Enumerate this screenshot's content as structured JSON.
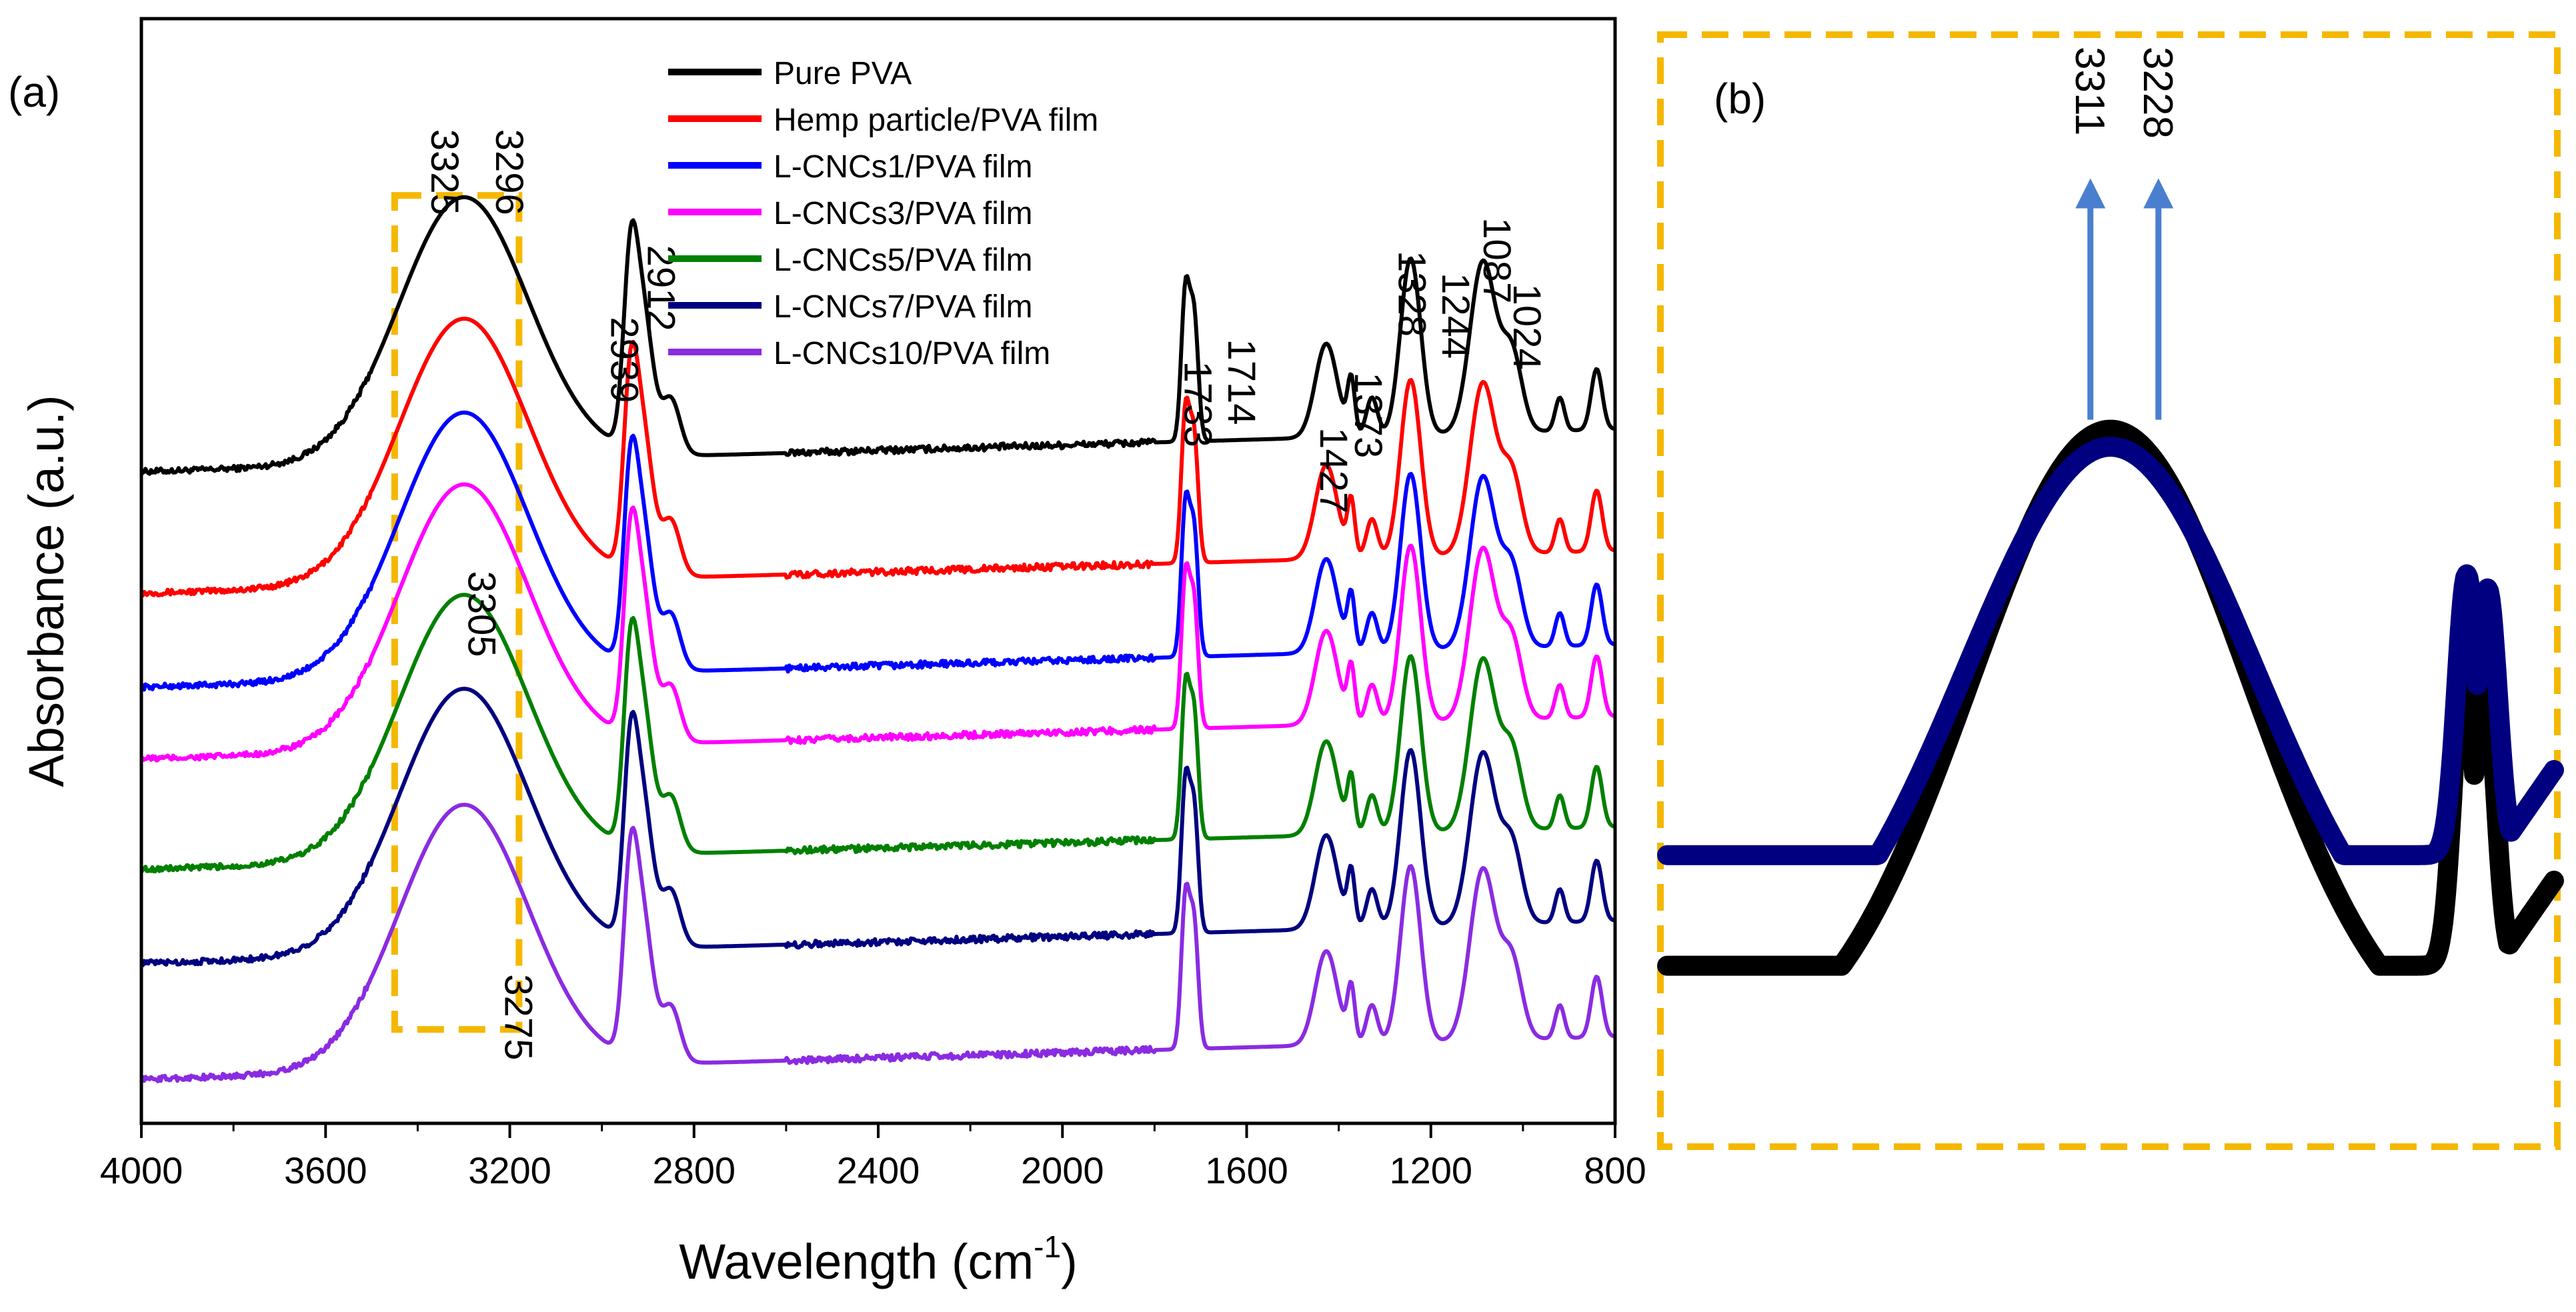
{
  "chart_data": [
    {
      "panel_label": "(a)",
      "type": "line",
      "title": "",
      "xlabel": "Wavelength (cm",
      "xlabel_sup": "-1",
      "xlabel_end": ")",
      "ylabel": "Absorbance (a.u.)",
      "xlim": [
        4000,
        800
      ],
      "ylim": [
        0,
        10
      ],
      "x_ticks": [
        "4000",
        "3600",
        "3200",
        "2800",
        "2400",
        "2000",
        "1600",
        "1200",
        "800"
      ],
      "x_tick_values": [
        4000,
        3600,
        3200,
        2800,
        2400,
        2000,
        1600,
        1200,
        800
      ],
      "legend": {
        "position": "top-center"
      },
      "series": [
        {
          "name": "Pure PVA",
          "color": "#000000",
          "offset": 5.9
        },
        {
          "name": "Hemp particle/PVA film",
          "color": "#ff0000",
          "offset": 4.8
        },
        {
          "name": "L-CNCs1/PVA film",
          "color": "#0000ff",
          "offset": 3.95
        },
        {
          "name": "L-CNCs3/PVA film",
          "color": "#ff00ff",
          "offset": 3.3
        },
        {
          "name": "L-CNCs5/PVA film",
          "color": "#008000",
          "offset": 2.3
        },
        {
          "name": "L-CNCs7/PVA film",
          "color": "#000080",
          "offset": 1.45
        },
        {
          "name": "L-CNCs10/PVA film",
          "color": "#8a2be2",
          "offset": 0.4
        }
      ],
      "peaks": [
        {
          "x": 3300,
          "peak_height": 2.4,
          "width": 140
        },
        {
          "x": 2939,
          "peak_height": 1.35,
          "width": 15
        },
        {
          "x": 2912,
          "peak_height": 1.3,
          "width": 22
        },
        {
          "x": 2850,
          "peak_height": 0.5,
          "width": 20
        },
        {
          "x": 1733,
          "peak_height": 1.35,
          "width": 9
        },
        {
          "x": 1714,
          "peak_height": 1.1,
          "width": 9
        },
        {
          "x": 1427,
          "peak_height": 0.85,
          "width": 24
        },
        {
          "x": 1373,
          "peak_height": 0.5,
          "width": 8
        },
        {
          "x": 1328,
          "peak_height": 0.35,
          "width": 12
        },
        {
          "x": 1244,
          "peak_height": 1.6,
          "width": 22
        },
        {
          "x": 1087,
          "peak_height": 1.55,
          "width": 28
        },
        {
          "x": 1024,
          "peak_height": 0.7,
          "width": 22
        },
        {
          "x": 920,
          "peak_height": 0.3,
          "width": 10
        },
        {
          "x": 840,
          "peak_height": 0.55,
          "width": 12
        }
      ],
      "annotations": [
        {
          "text": "3325",
          "x": 3370,
          "y": 9.0
        },
        {
          "text": "3296",
          "x": 3230,
          "y": 9.0
        },
        {
          "text": "2939",
          "x": 2980,
          "y": 7.3
        },
        {
          "text": "2912",
          "x": 2900,
          "y": 7.95
        },
        {
          "text": "1733",
          "x": 1735,
          "y": 6.9
        },
        {
          "text": "1714",
          "x": 1640,
          "y": 7.1
        },
        {
          "text": "1427",
          "x": 1440,
          "y": 6.3
        },
        {
          "text": "1373",
          "x": 1365,
          "y": 6.8
        },
        {
          "text": "1328",
          "x": 1270,
          "y": 7.9
        },
        {
          "text": "1244",
          "x": 1175,
          "y": 7.7
        },
        {
          "text": "1087",
          "x": 1085,
          "y": 8.2
        },
        {
          "text": "1024",
          "x": 1020,
          "y": 7.6
        },
        {
          "text": "3305",
          "x": 3290,
          "y": 5.0
        },
        {
          "text": "3275",
          "x": 3210,
          "y": 1.35
        }
      ],
      "highlight_box": {
        "x_range": [
          3450,
          3180
        ],
        "y_range": [
          0.85,
          8.4
        ],
        "color": "#f5b800"
      }
    },
    {
      "panel_label": "(b)",
      "type": "line",
      "xlim": [
        3900,
        2700
      ],
      "ylim": [
        0,
        1.05
      ],
      "series": [
        {
          "name": "Pure PVA",
          "color": "#000000",
          "base": 0.03,
          "peak": 0.78,
          "center": 3300,
          "width": 190,
          "small_peak_x": 2822,
          "small_peak": 0.52,
          "min_value": 0.15
        },
        {
          "name": "L-CNCs7/PVA film",
          "color": "#000080",
          "base": 0.1,
          "peak": 0.76,
          "center": 3300,
          "width": 195,
          "small_peak_x": 2818,
          "small_peak": 0.61,
          "min_value": 0.28
        }
      ],
      "annotations": [
        {
          "text": "3311",
          "x": 3311
        },
        {
          "text": "3228",
          "x": 3228
        }
      ],
      "arrow_color": "#4a7fcf",
      "border_color": "#f5b800"
    }
  ]
}
